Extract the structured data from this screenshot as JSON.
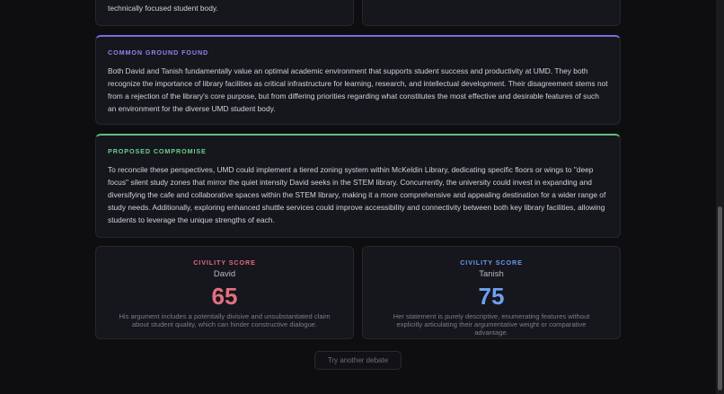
{
  "top_cards": {
    "left_text": "technically focused student body."
  },
  "common_ground": {
    "label": "COMMON GROUND FOUND",
    "text": "Both David and Tanish fundamentally value an optimal academic environment that supports student success and productivity at UMD. They both recognize the importance of library facilities as critical infrastructure for learning, research, and intellectual development. Their disagreement stems not from a rejection of the library's core purpose, but from differing priorities regarding what constitutes the most effective and desirable features of such an environment for the diverse UMD student body."
  },
  "compromise": {
    "label": "PROPOSED COMPROMISE",
    "text": "To reconcile these perspectives, UMD could implement a tiered zoning system within McKeldin Library, dedicating specific floors or wings to \"deep focus\" silent study zones that mirror the quiet intensity David seeks in the STEM library. Concurrently, the university could invest in expanding and diversifying the cafe and collaborative spaces within the STEM library, making it a more comprehensive and appealing destination for a wider range of study needs. Additionally, exploring enhanced shuttle services could improve accessibility and connectivity between both key library facilities, allowing students to leverage the unique strengths of each."
  },
  "scores": [
    {
      "label": "CIVILITY SCORE",
      "name": "David",
      "score": 65,
      "note": "His argument includes a potentially divisive and unsubstantiated claim about student quality, which can hinder constructive dialogue."
    },
    {
      "label": "CIVILITY SCORE",
      "name": "Tanish",
      "score": 75,
      "note": "Her statement is purely descriptive, enumerating features without explicitly articulating their argumentative weight or comparative advantage."
    }
  ],
  "button": "Try another debate"
}
